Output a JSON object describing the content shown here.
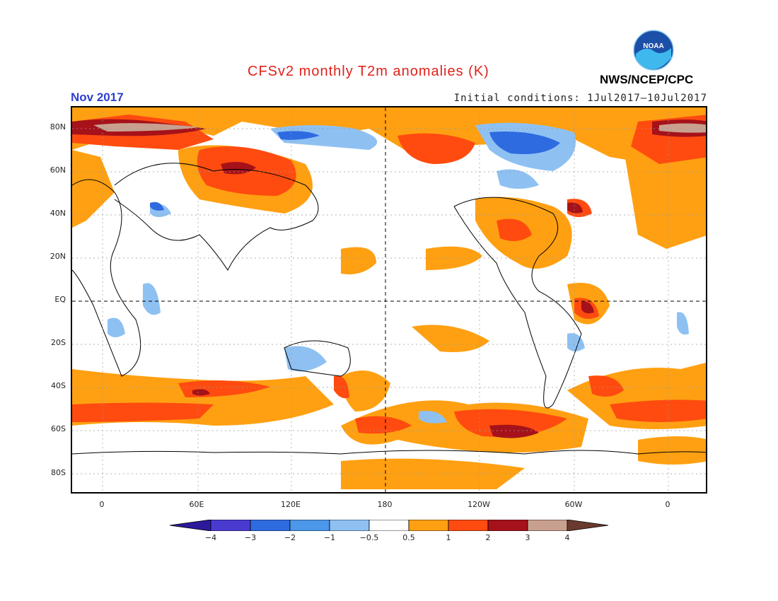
{
  "header": {
    "title": "CFSv2 monthly T2m anomalies (K)",
    "month": "Nov 2017",
    "initial_conditions": "Initial conditions: 1Jul2017–10Jul2017",
    "agency": "NWS/NCEP/CPC",
    "logo_text": "NOAA"
  },
  "axes": {
    "lat_labels": [
      "80N",
      "60N",
      "40N",
      "20N",
      "EQ",
      "20S",
      "40S",
      "60S",
      "80S"
    ],
    "lon_labels": [
      "0",
      "60E",
      "120E",
      "180",
      "120W",
      "60W",
      "0"
    ]
  },
  "colorbar": {
    "labels": [
      "−4",
      "−3",
      "−2",
      "−1",
      "−0.5",
      "0.5",
      "1",
      "2",
      "3",
      "4"
    ],
    "colors": [
      "#2b1a9c",
      "#4a3bd0",
      "#2e6be0",
      "#4b97ea",
      "#8ec1f2",
      "#ffffff",
      "#ffa012",
      "#ff4b0f",
      "#a6121a",
      "#c9a08f",
      "#6b3a2e"
    ]
  },
  "colors": {
    "title": "#e0221a",
    "month": "#2d3fd1"
  }
}
